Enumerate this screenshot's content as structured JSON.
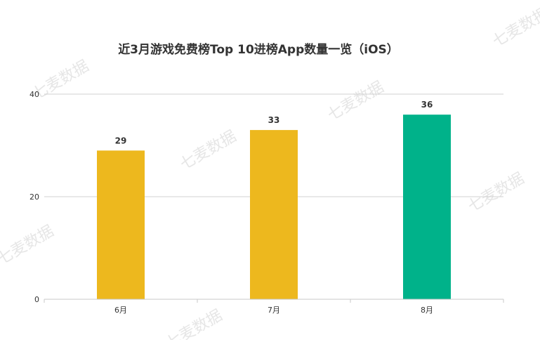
{
  "watermark": "七麦数据",
  "chart_data": {
    "type": "bar",
    "title": "近3月游戏免费榜Top 10进榜App数量一览（iOS）",
    "xlabel": "",
    "ylabel": "",
    "categories": [
      "6月",
      "7月",
      "8月"
    ],
    "values": [
      29,
      33,
      36
    ],
    "ylim": [
      0,
      40
    ],
    "yticks": [
      0,
      20,
      40
    ],
    "grid": true,
    "legend": "none",
    "colors": [
      "#EDB81E",
      "#EDB81E",
      "#00B28A"
    ]
  }
}
